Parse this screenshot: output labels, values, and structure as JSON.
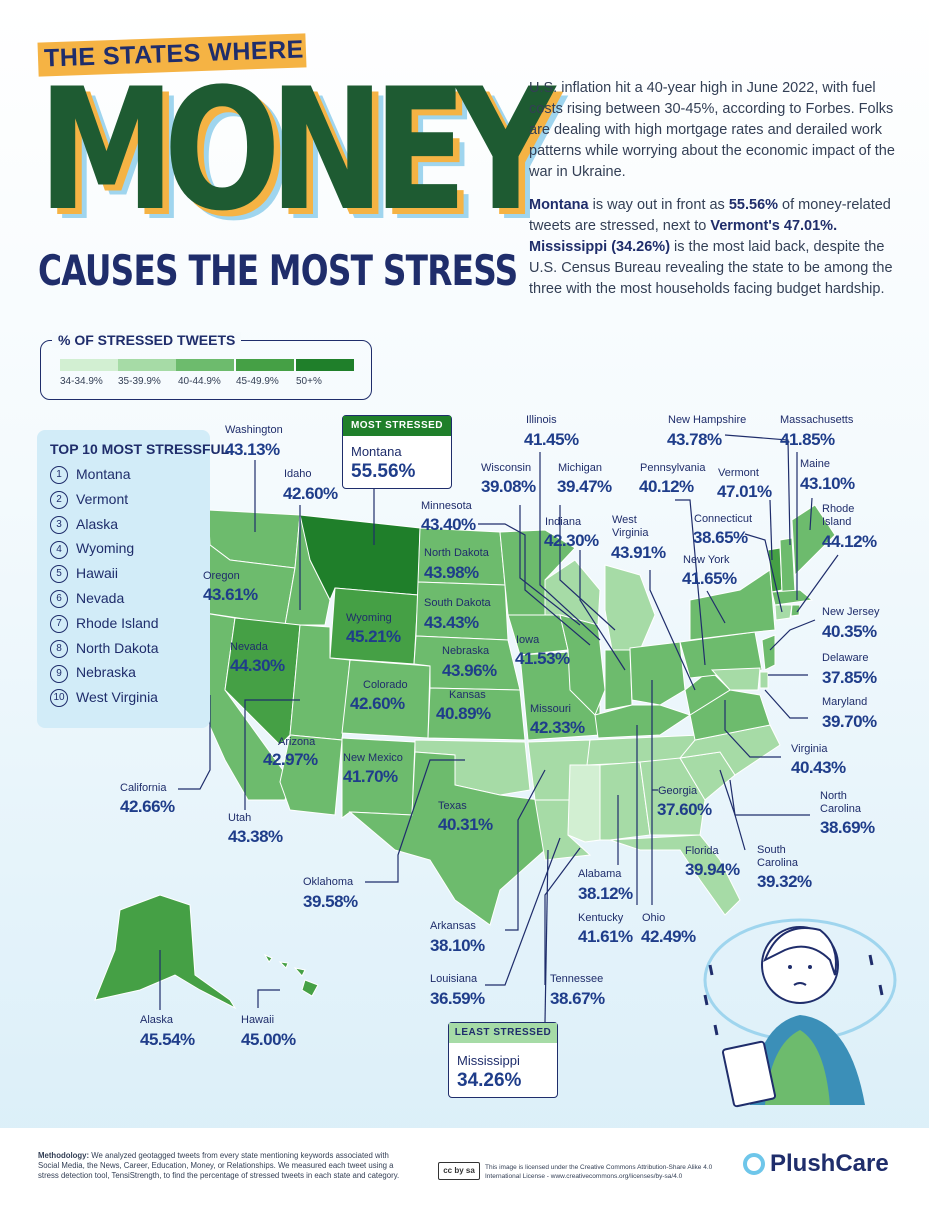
{
  "header": {
    "banner": "THE STATES WHERE",
    "headline": "MONEY",
    "subheadline": "CAUSES THE MOST STRESS"
  },
  "intro": {
    "p1": "U.S. inflation hit a 40-year high in June 2022, with fuel costs rising between 30-45%, according to Forbes. Folks are dealing with high mortgage rates and derailed work patterns while worrying about the economic impact of the war in Ukraine.",
    "p2_a": "Montana",
    "p2_b": " is way out in front as ",
    "p2_c": "55.56%",
    "p2_d": " of money-related tweets are stressed, next to ",
    "p2_e": "Vermont's 47.01%.",
    "p2_f": "Mississippi (34.26%)",
    "p2_g": " is the most laid back, despite the U.S. Census Bureau revealing the state to be among the three with the most households facing budget hardship."
  },
  "legend": {
    "title": "% OF STRESSED TWEETS",
    "items": [
      {
        "label": "34-34.9%",
        "color": "#d2efd2"
      },
      {
        "label": "35-39.9%",
        "color": "#a6dba6"
      },
      {
        "label": "40-44.9%",
        "color": "#6dbb6d"
      },
      {
        "label": "45-49.9%",
        "color": "#45a045"
      },
      {
        "label": "50+%",
        "color": "#1f7f2a"
      }
    ]
  },
  "top10": {
    "title": "TOP 10 MOST STRESSFUL",
    "items": [
      "Montana",
      "Vermont",
      "Alaska",
      "Wyoming",
      "Hawaii",
      "Nevada",
      "Rhode Island",
      "North Dakota",
      "Nebraska",
      "West Virginia"
    ]
  },
  "callouts": {
    "most": {
      "head": "MOST STRESSED",
      "state": "Montana",
      "value": "55.56%"
    },
    "least": {
      "head": "LEAST STRESSED",
      "state": "Mississippi",
      "value": "34.26%"
    }
  },
  "states": {
    "washington": {
      "name": "Washington",
      "value": "43.13%"
    },
    "idaho": {
      "name": "Idaho",
      "value": "42.60%"
    },
    "oregon": {
      "name": "Oregon",
      "value": "43.61%"
    },
    "nevada": {
      "name": "Nevada",
      "value": "44.30%"
    },
    "california": {
      "name": "California",
      "value": "42.66%"
    },
    "utah": {
      "name": "Utah",
      "value": "43.38%"
    },
    "arizona": {
      "name": "Arizona",
      "value": "42.97%"
    },
    "wyoming": {
      "name": "Wyoming",
      "value": "45.21%"
    },
    "colorado": {
      "name": "Colorado",
      "value": "42.60%"
    },
    "new_mexico": {
      "name": "New Mexico",
      "value": "41.70%"
    },
    "north_dakota": {
      "name": "North Dakota",
      "value": "43.98%"
    },
    "south_dakota": {
      "name": "South Dakota",
      "value": "43.43%"
    },
    "nebraska": {
      "name": "Nebraska",
      "value": "43.96%"
    },
    "kansas": {
      "name": "Kansas",
      "value": "40.89%"
    },
    "oklahoma": {
      "name": "Oklahoma",
      "value": "39.58%"
    },
    "texas": {
      "name": "Texas",
      "value": "40.31%"
    },
    "minnesota": {
      "name": "Minnesota",
      "value": "43.40%"
    },
    "iowa": {
      "name": "Iowa",
      "value": "41.53%"
    },
    "missouri": {
      "name": "Missouri",
      "value": "42.33%"
    },
    "arkansas": {
      "name": "Arkansas",
      "value": "38.10%"
    },
    "louisiana": {
      "name": "Louisiana",
      "value": "36.59%"
    },
    "wisconsin": {
      "name": "Wisconsin",
      "value": "39.08%"
    },
    "illinois": {
      "name": "Illinois",
      "value": "41.45%"
    },
    "michigan": {
      "name": "Michigan",
      "value": "39.47%"
    },
    "indiana": {
      "name": "Indiana",
      "value": "42.30%"
    },
    "ohio": {
      "name": "Ohio",
      "value": "42.49%"
    },
    "kentucky": {
      "name": "Kentucky",
      "value": "41.61%"
    },
    "tennessee": {
      "name": "Tennessee",
      "value": "38.67%"
    },
    "alabama": {
      "name": "Alabama",
      "value": "38.12%"
    },
    "georgia": {
      "name": "Georgia",
      "value": "37.60%"
    },
    "florida": {
      "name": "Florida",
      "value": "39.94%"
    },
    "south_carolina": {
      "name": "South\nCarolina",
      "value": "39.32%"
    },
    "north_carolina": {
      "name": "North\nCarolina",
      "value": "38.69%"
    },
    "virginia": {
      "name": "Virginia",
      "value": "40.43%"
    },
    "west_virginia": {
      "name": "West\nVirginia",
      "value": "43.91%"
    },
    "pennsylvania": {
      "name": "Pennsylvania",
      "value": "40.12%"
    },
    "new_york": {
      "name": "New York",
      "value": "41.65%"
    },
    "vermont": {
      "name": "Vermont",
      "value": "47.01%"
    },
    "new_hampshire": {
      "name": "New Hampshire",
      "value": "43.78%"
    },
    "massachusetts": {
      "name": "Massachusetts",
      "value": "41.85%"
    },
    "maine": {
      "name": "Maine",
      "value": "43.10%"
    },
    "connecticut": {
      "name": "Connecticut",
      "value": "38.65%"
    },
    "rhode_island": {
      "name": "Rhode\nIsland",
      "value": "44.12%"
    },
    "new_jersey": {
      "name": "New Jersey",
      "value": "40.35%"
    },
    "delaware": {
      "name": "Delaware",
      "value": "37.85%"
    },
    "maryland": {
      "name": "Maryland",
      "value": "39.70%"
    },
    "alaska": {
      "name": "Alaska",
      "value": "45.54%"
    },
    "hawaii": {
      "name": "Hawaii",
      "value": "45.00%"
    }
  },
  "footer": {
    "method_label": "Methodology:",
    "method_text": " We analyzed geotagged tweets from every state mentioning keywords associated with Social Media, the News, Career, Education, Money, or Relationships. We measured each tweet using a stress detection tool, TensiStrength, to find the percentage of stressed tweets in each state and category.",
    "cc_badge": "cc by sa",
    "license": "This image is licensed under the Creative Commons Attribution-Share Alike 4.0 International License - www.creativecommons.org/licenses/by-sa/4.0",
    "brand": "PlushCare"
  }
}
